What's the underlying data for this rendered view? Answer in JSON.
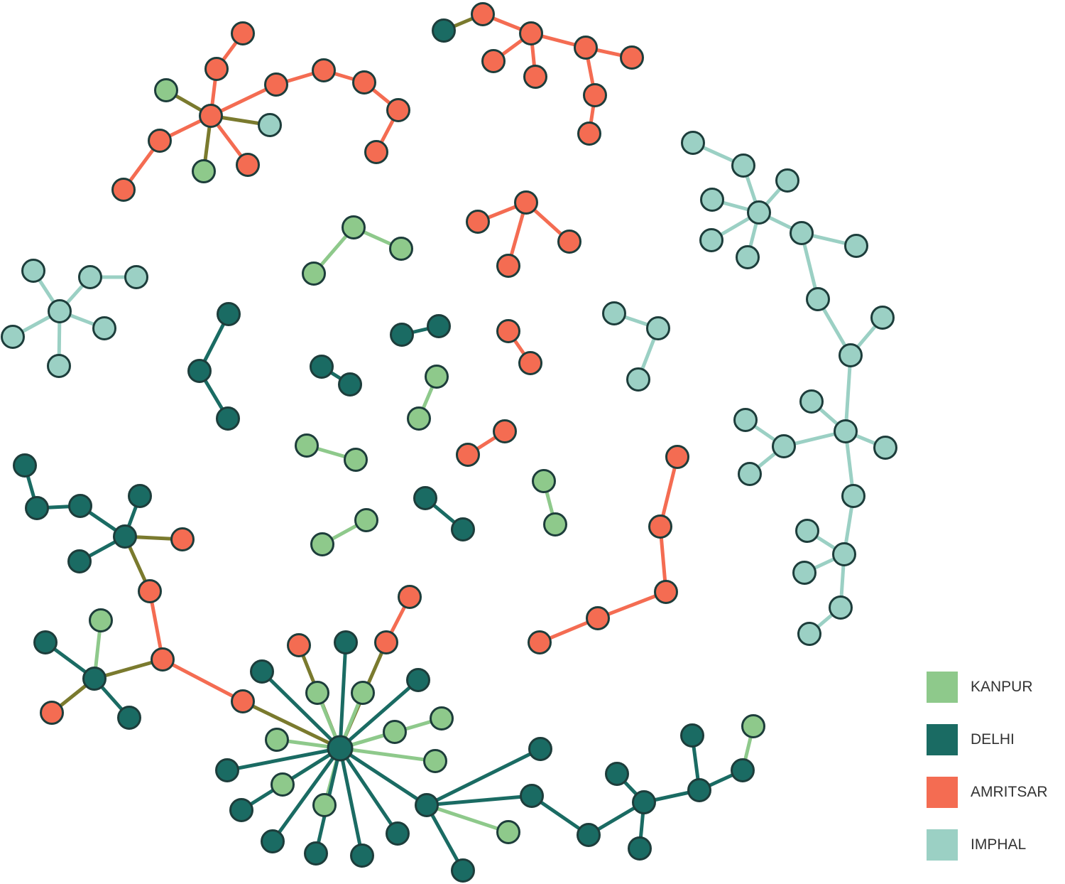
{
  "legend": {
    "items": [
      {
        "label": "KANPUR",
        "color": "#8ec98b"
      },
      {
        "label": "DELHI",
        "color": "#1a6b63"
      },
      {
        "label": "AMRITSAR",
        "color": "#f46c52"
      },
      {
        "label": "IMPHAL",
        "color": "#9bd0c4"
      }
    ]
  },
  "graph": {
    "cross_edge_color": "#7a7a2e",
    "node_stroke": "#1d3d3b"
  }
}
